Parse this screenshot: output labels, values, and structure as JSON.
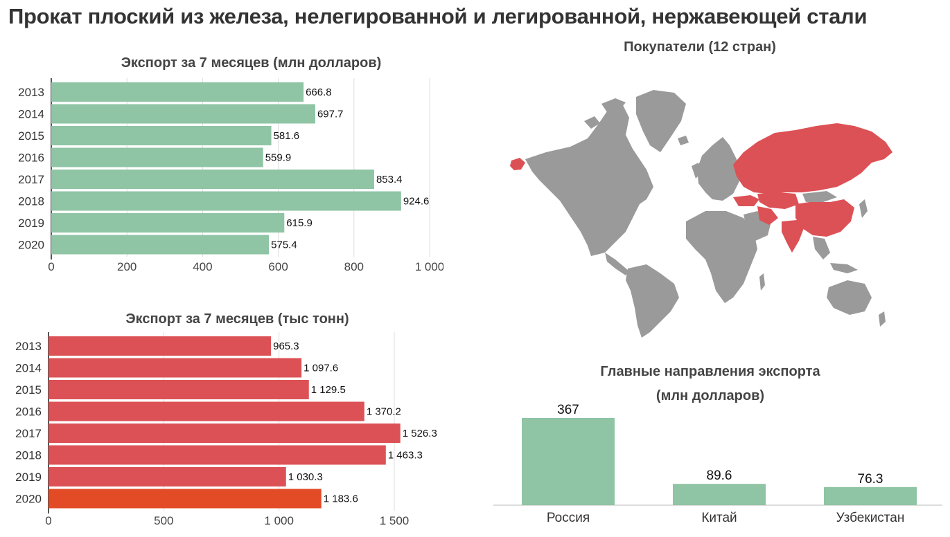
{
  "page_title": "Прокат плоский из железа, нелегированной  и легированной,  нержавеющей стали",
  "colors": {
    "usd_bar": "#8fc4a5",
    "tonnes_bar": "#dc5155",
    "tonnes_highlight": "#e34b26",
    "map_buyer": "#dc5155",
    "map_other": "#9a9a9a",
    "grid": "#dddddd",
    "text": "#333333"
  },
  "map": {
    "title": "Покупатели (12 стран)",
    "highlighted_regions": [
      "Россия",
      "Китай",
      "Казахстан",
      "Узбекистан",
      "Индия",
      "Иран",
      "Турция",
      "Аляска"
    ]
  },
  "chart_data": [
    {
      "type": "bar",
      "orientation": "horizontal",
      "title": "Экспорт за 7 месяцев (млн долларов)",
      "categories": [
        "2013",
        "2014",
        "2015",
        "2016",
        "2017",
        "2018",
        "2019",
        "2020"
      ],
      "values": [
        666.8,
        697.7,
        581.6,
        559.9,
        853.4,
        924.6,
        615.9,
        575.4
      ],
      "value_labels": [
        "666.8",
        "697.7",
        "581.6",
        "559.9",
        "853.4",
        "924.6",
        "615.9",
        "575.4"
      ],
      "xlim": [
        0,
        1000
      ],
      "ticks": [
        0,
        200,
        400,
        600,
        800,
        1000
      ],
      "tick_labels": [
        "0",
        "200",
        "400",
        "600",
        "800",
        "1 000"
      ],
      "grid": true
    },
    {
      "type": "bar",
      "orientation": "horizontal",
      "title": "Экспорт за 7 месяцев (тыс тонн)",
      "categories": [
        "2013",
        "2014",
        "2015",
        "2016",
        "2017",
        "2018",
        "2019",
        "2020"
      ],
      "values": [
        965.3,
        1097.6,
        1129.5,
        1370.2,
        1526.3,
        1463.3,
        1030.3,
        1183.6
      ],
      "value_labels": [
        "965.3",
        "1 097.6",
        "1 129.5",
        "1 370.2",
        "1 526.3",
        "1 463.3",
        "1 030.3",
        "1 183.6"
      ],
      "highlight_category": "2020",
      "xlim": [
        0,
        1500
      ],
      "ticks": [
        0,
        500,
        1000,
        1500
      ],
      "tick_labels": [
        "0",
        "500",
        "1 000",
        "1 500"
      ],
      "grid": true
    },
    {
      "type": "bar",
      "orientation": "vertical",
      "title_lines": [
        "Главные направления экспорта",
        "(млн долларов)"
      ],
      "categories": [
        "Россия",
        "Китай",
        "Узбекистан"
      ],
      "values": [
        367,
        89.6,
        76.3
      ],
      "value_labels": [
        "367",
        "89.6",
        "76.3"
      ],
      "grid": false
    }
  ]
}
